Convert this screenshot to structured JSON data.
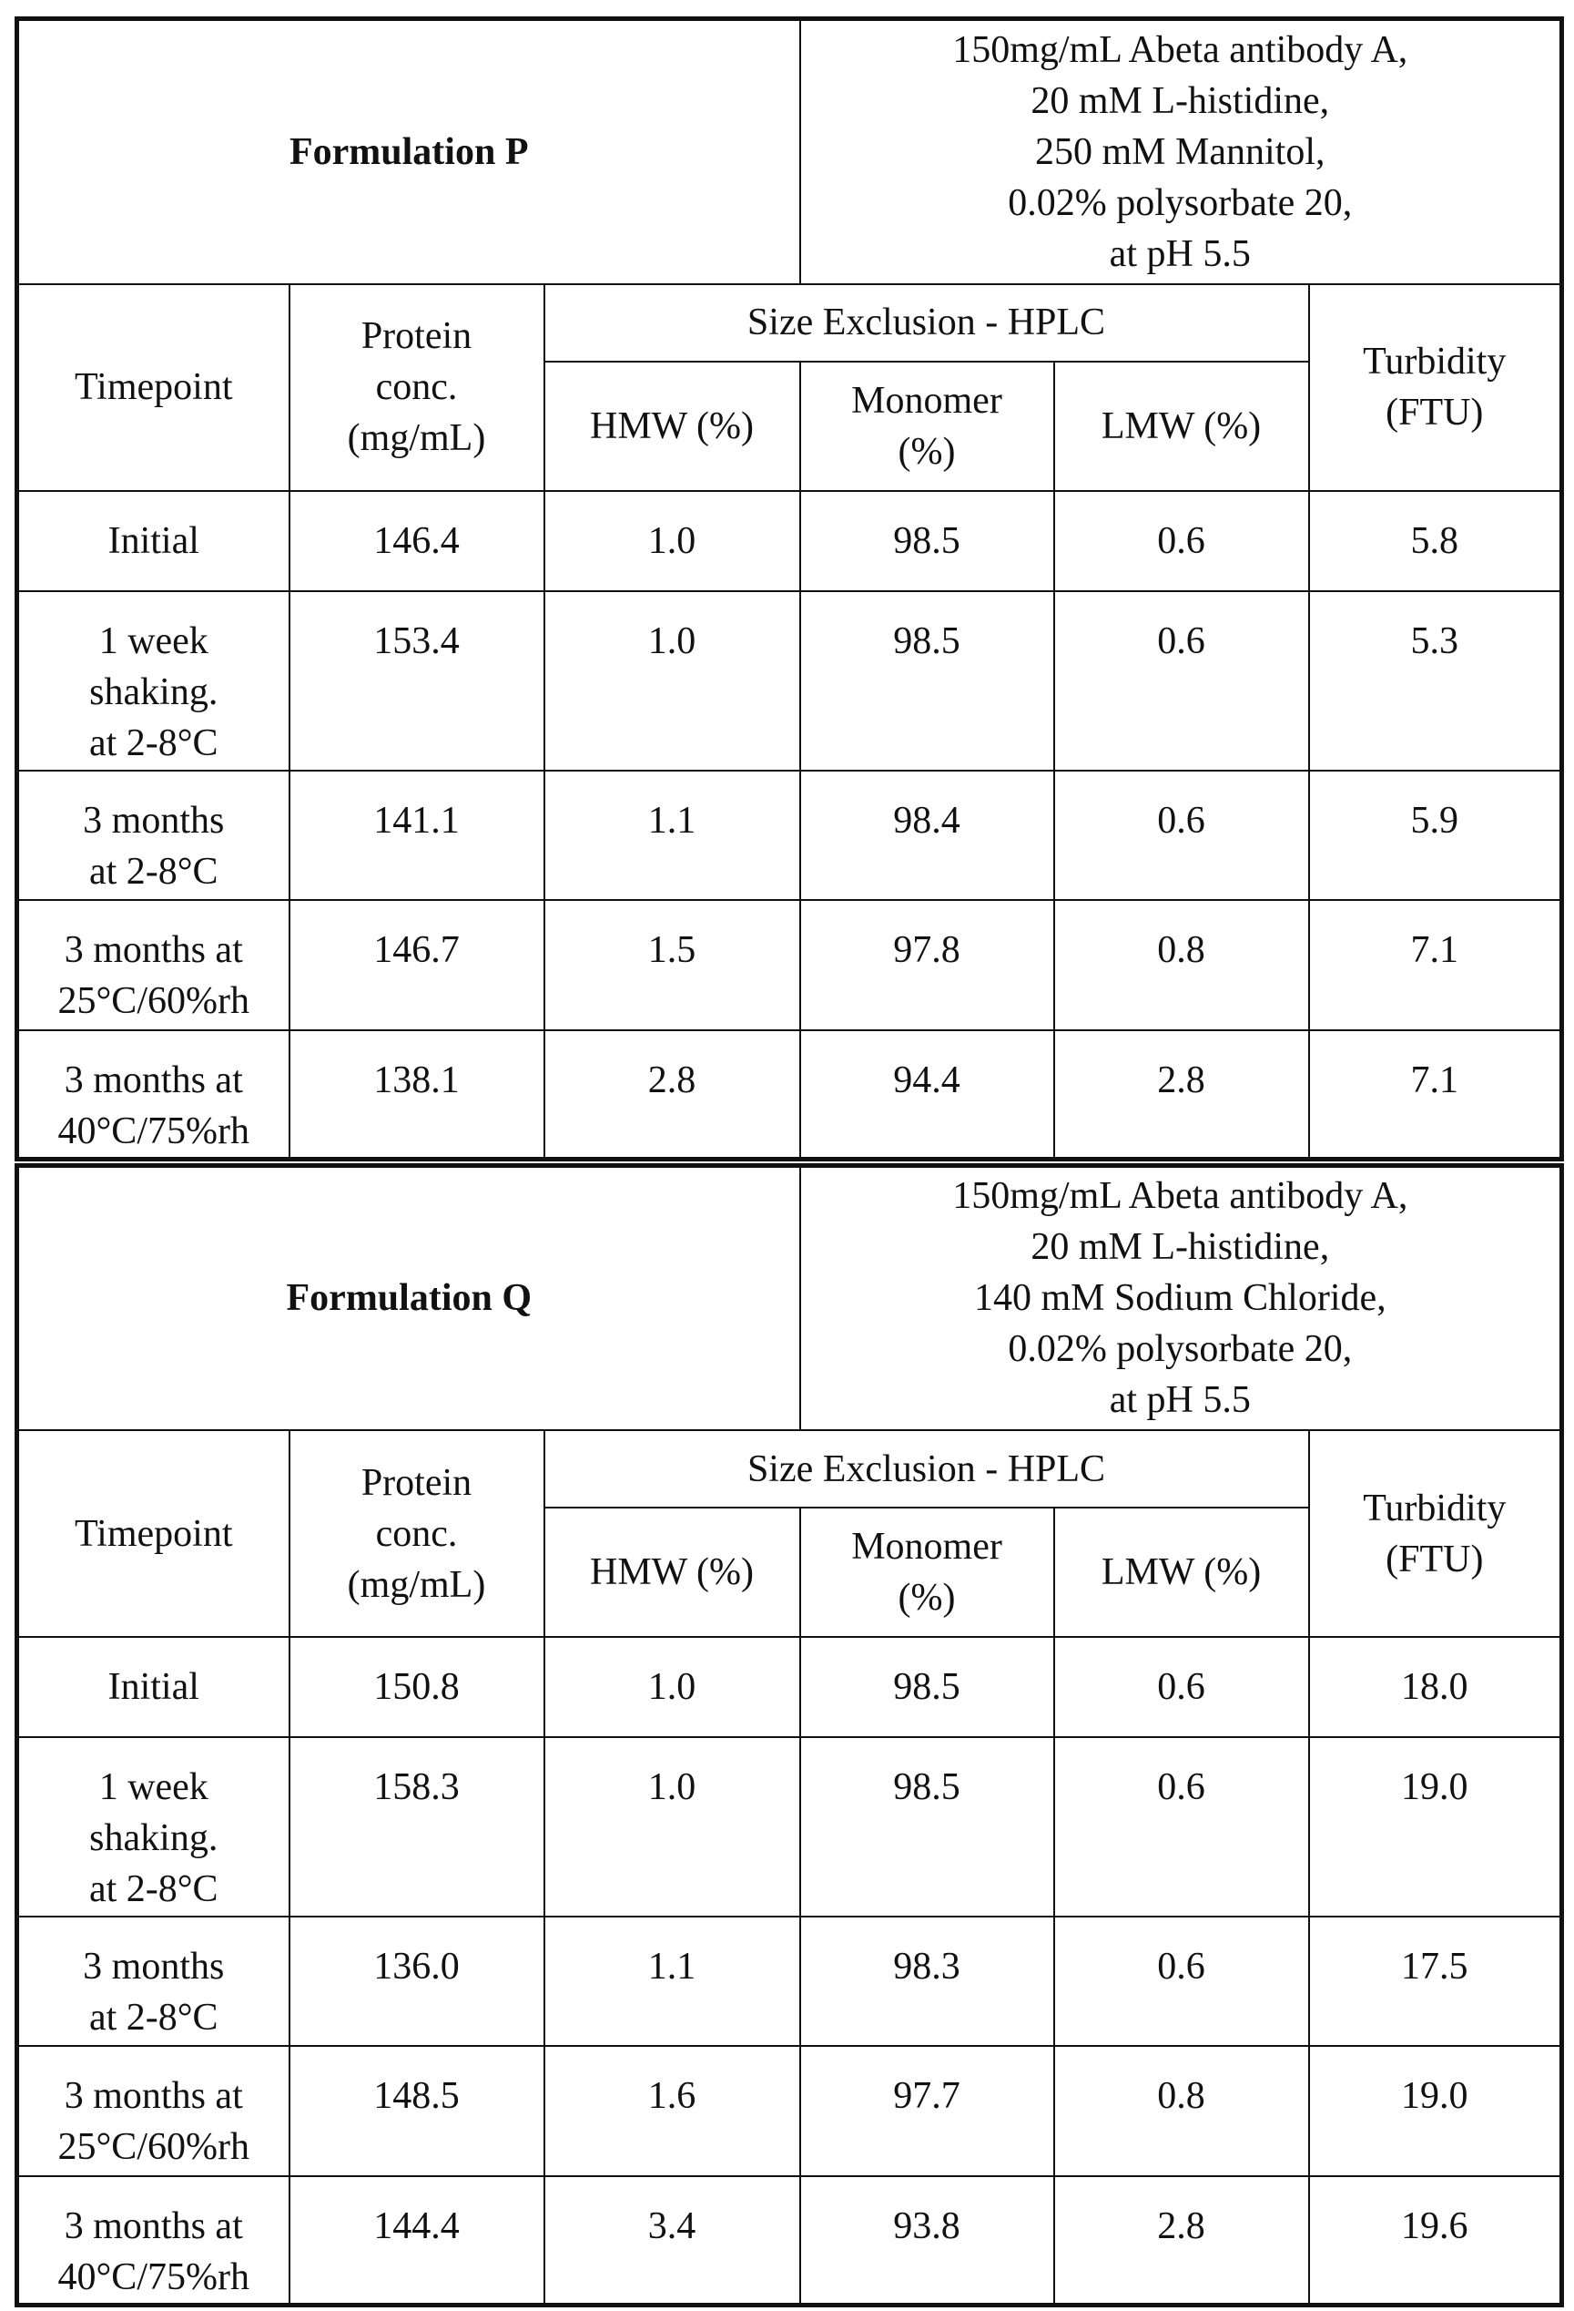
{
  "sections": [
    {
      "title": "Formulation P",
      "description": "150mg/mL Abeta antibody A,\n20 mM L-histidine,\n250 mM Mannitol,\n0.02% polysorbate 20,\nat pH 5.5",
      "header": {
        "timepoint": "Timepoint",
        "protein": "Protein\nconc.\n(mg/mL)",
        "sec": "Size Exclusion - HPLC",
        "hmw": "HMW (%)",
        "monomer": "Monomer\n(%)",
        "lmw": "LMW (%)",
        "turbidity": "Turbidity\n(FTU)"
      },
      "rows": [
        [
          "Initial",
          "146.4",
          "1.0",
          "98.5",
          "0.6",
          "5.8"
        ],
        [
          "1 week\nshaking.\nat 2-8°C",
          "153.4",
          "1.0",
          "98.5",
          "0.6",
          "5.3"
        ],
        [
          "3 months\nat 2-8°C",
          "141.1",
          "1.1",
          "98.4",
          "0.6",
          "5.9"
        ],
        [
          "3 months at\n25°C/60%rh",
          "146.7",
          "1.5",
          "97.8",
          "0.8",
          "7.1"
        ],
        [
          "3 months at\n40°C/75%rh",
          "138.1",
          "2.8",
          "94.4",
          "2.8",
          "7.1"
        ]
      ]
    },
    {
      "title": "Formulation Q",
      "description": "150mg/mL Abeta antibody A,\n20 mM L-histidine,\n140 mM Sodium Chloride,\n0.02% polysorbate 20,\nat pH 5.5",
      "header": {
        "timepoint": "Timepoint",
        "protein": "Protein\nconc.\n(mg/mL)",
        "sec": "Size Exclusion - HPLC",
        "hmw": "HMW (%)",
        "monomer": "Monomer\n(%)",
        "lmw": "LMW (%)",
        "turbidity": "Turbidity\n(FTU)"
      },
      "rows": [
        [
          "Initial",
          "150.8",
          "1.0",
          "98.5",
          "0.6",
          "18.0"
        ],
        [
          "1 week\nshaking.\nat 2-8°C",
          "158.3",
          "1.0",
          "98.5",
          "0.6",
          "19.0"
        ],
        [
          "3 months\nat 2-8°C",
          "136.0",
          "1.1",
          "98.3",
          "0.6",
          "17.5"
        ],
        [
          "3 months at\n25°C/60%rh",
          "148.5",
          "1.6",
          "97.7",
          "0.8",
          "19.0"
        ],
        [
          "3 months at\n40°C/75%rh",
          "144.4",
          "3.4",
          "93.8",
          "2.8",
          "19.6"
        ]
      ]
    }
  ]
}
